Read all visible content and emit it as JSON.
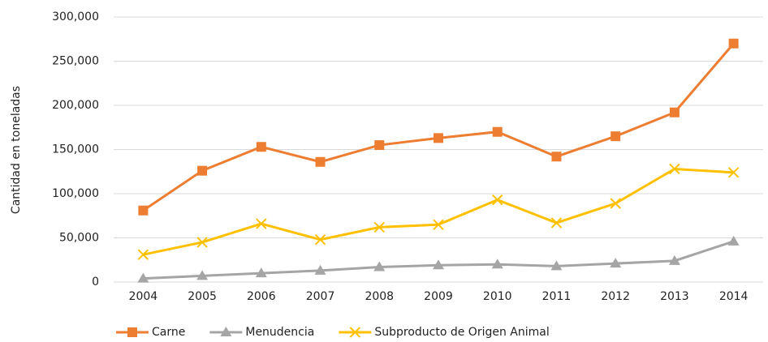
{
  "chart_data": {
    "type": "line",
    "y_label": "Cantidad en toneladas",
    "categories": [
      "2004",
      "2005",
      "2006",
      "2007",
      "2008",
      "2009",
      "2010",
      "2011",
      "2012",
      "2013",
      "2014"
    ],
    "series": [
      {
        "name": "Carne",
        "color": "#ed7d31",
        "marker": "square",
        "values": [
          81000,
          126000,
          153000,
          136000,
          155000,
          163000,
          170000,
          142000,
          165000,
          192000,
          270000
        ]
      },
      {
        "name": "Menudencia",
        "color": "#a5a5a5",
        "marker": "triangle",
        "values": [
          4000,
          7000,
          10000,
          13000,
          17000,
          19000,
          20000,
          18000,
          21000,
          24000,
          46000
        ]
      },
      {
        "name": "Subproducto de Origen Animal",
        "color": "#ffc000",
        "marker": "x",
        "values": [
          31000,
          45000,
          66000,
          48000,
          62000,
          65000,
          93000,
          67000,
          89000,
          128000,
          124000
        ]
      }
    ],
    "ylim": [
      0,
      300000
    ],
    "yticks": [
      0,
      {
        "value": 50000,
        "label": "50,000"
      },
      {
        "value": 100000,
        "label": "100,000"
      },
      {
        "value": 150000,
        "label": "150,000"
      },
      {
        "value": 200000,
        "label": "200,000"
      },
      {
        "value": 250000,
        "label": "250,000"
      },
      {
        "value": 300000,
        "label": "300,000"
      }
    ],
    "grid": true,
    "legend": "bottom"
  }
}
